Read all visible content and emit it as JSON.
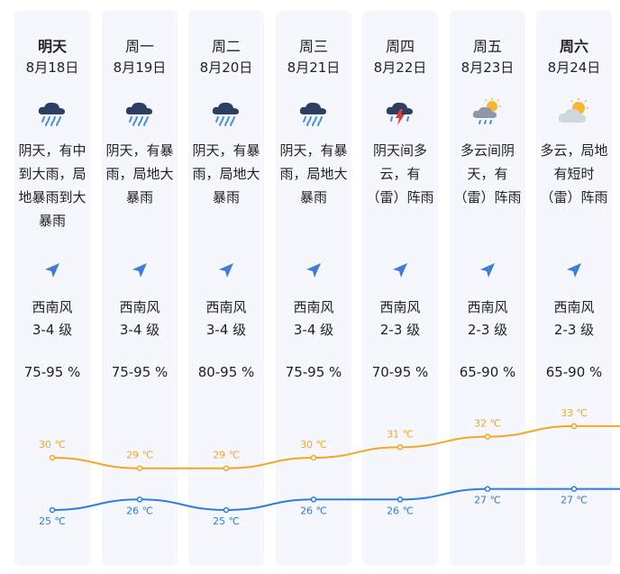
{
  "days": [
    {
      "day": "明天",
      "date": "8月18日",
      "icon": "heavy-rain-icon",
      "desc": "阴天，有中到大雨，局地暴雨到大暴雨",
      "wind_dir": "西南风",
      "wind_level": "3-4 级",
      "humidity": "75-95 %",
      "high": "30 ℃",
      "low": "25 ℃"
    },
    {
      "day": "周一",
      "date": "8月19日",
      "icon": "heavy-rain-icon",
      "desc": "阴天，有暴雨，局地大暴雨",
      "wind_dir": "西南风",
      "wind_level": "3-4 级",
      "humidity": "75-95 %",
      "high": "29 ℃",
      "low": "26 ℃"
    },
    {
      "day": "周二",
      "date": "8月20日",
      "icon": "heavy-rain-icon",
      "desc": "阴天，有暴雨，局地大暴雨",
      "wind_dir": "西南风",
      "wind_level": "3-4 级",
      "humidity": "80-95 %",
      "high": "29 ℃",
      "low": "25 ℃"
    },
    {
      "day": "周三",
      "date": "8月21日",
      "icon": "heavy-rain-icon",
      "desc": "阴天，有暴雨，局地大暴雨",
      "wind_dir": "西南风",
      "wind_level": "3-4 级",
      "humidity": "75-95 %",
      "high": "30 ℃",
      "low": "26 ℃"
    },
    {
      "day": "周四",
      "date": "8月22日",
      "icon": "thunderstorm-icon",
      "desc": "阴天间多云，有（雷）阵雨",
      "wind_dir": "西南风",
      "wind_level": "2-3 级",
      "humidity": "70-95 %",
      "high": "31 ℃",
      "low": "26 ℃"
    },
    {
      "day": "周五",
      "date": "8月23日",
      "icon": "sun-cloud-rain-icon",
      "desc": "多云间阴天，有（雷）阵雨",
      "wind_dir": "西南风",
      "wind_level": "2-3 级",
      "humidity": "65-90 %",
      "high": "32 ℃",
      "low": "27 ℃"
    },
    {
      "day": "周六",
      "date": "8月24日",
      "icon": "partly-cloudy-icon",
      "desc": "多云，局地有短时（雷）阵雨",
      "wind_dir": "西南风",
      "wind_level": "2-3 级",
      "humidity": "65-90 %",
      "high": "33 ℃",
      "low": "27 ℃"
    }
  ],
  "chart_data": {
    "type": "line",
    "x": [
      "8月18日",
      "8月19日",
      "8月20日",
      "8月21日",
      "8月22日",
      "8月23日",
      "8月24日"
    ],
    "series": [
      {
        "values": [
          30,
          29,
          29,
          30,
          31,
          32,
          33
        ],
        "color": "#f5a623"
      },
      {
        "values": [
          25,
          26,
          25,
          26,
          26,
          27,
          27
        ],
        "color": "#2b7de0"
      }
    ],
    "unit": "℃"
  },
  "colors": {
    "high": "#f5a623",
    "low": "#2b7de0",
    "card": "#f5f7fc",
    "arrow": "#3d7fd6"
  }
}
